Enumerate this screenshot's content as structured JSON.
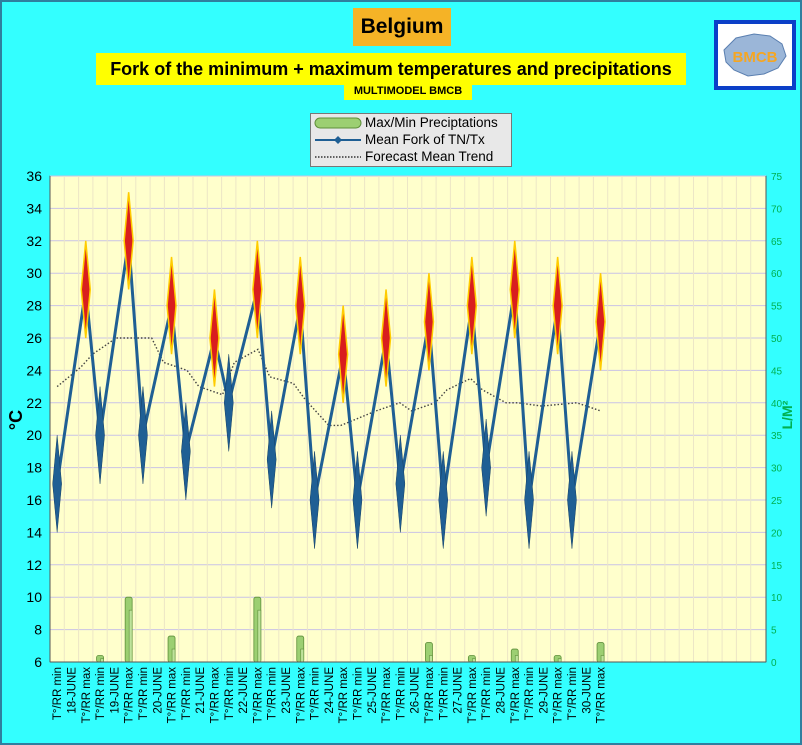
{
  "header": {
    "country": "Belgium",
    "subtitle": "Fork of the minimum + maximum temperatures and precipitations",
    "model": "MULTIMODEL BMCB",
    "logo_text": "BMCB"
  },
  "legend": {
    "items": [
      "Max/Min Preciptations",
      "Mean Fork of TN/Tx",
      "Forecast Mean Trend"
    ]
  },
  "colors": {
    "background": "#33ffff",
    "plot_bg": "#ffffcc",
    "line": "#1f5f94",
    "marker": "#1f5f94",
    "max_diamond": "#d91e1e",
    "max_diamond_edge": "#ffcc00",
    "trend": "#444444",
    "precip": "#9ccf72",
    "right_axis": "#00b050"
  },
  "chart_data": {
    "type": "line",
    "ylabel": "°C",
    "ylabel_right": "L/M²",
    "ylim": [
      6,
      36
    ],
    "yticks": [
      6,
      8,
      10,
      12,
      14,
      16,
      18,
      20,
      22,
      24,
      26,
      28,
      30,
      32,
      34,
      36
    ],
    "y2lim": [
      0,
      75
    ],
    "y2ticks": [
      0,
      5,
      10,
      15,
      20,
      25,
      30,
      35,
      40,
      45,
      50,
      55,
      60,
      65,
      70,
      75
    ],
    "categories": [
      "T°/RR min",
      "18-JUNE",
      "T°/RR max",
      "T°/RR min",
      "19-JUNE",
      "T°/RR max",
      "T°/RR min",
      "20-JUNE",
      "T°/RR max",
      "T°/RR min",
      "21-JUNE",
      "T°/RR max",
      "T°/RR min",
      "22-JUNE",
      "T°/RR max",
      "T°/RR min",
      "23-JUNE",
      "T°/RR max",
      "T°/RR min",
      "24-JUNE",
      "T°/RR max",
      "T°/RR min",
      "25-JUNE",
      "T°/RR max",
      "T°/RR min",
      "26-JUNE",
      "T°/RR max",
      "T°/RR min",
      "27-JUNE",
      "T°/RR max",
      "T°/RR min",
      "28-JUNE",
      "T°/RR max",
      "T°/RR min",
      "29-JUNE",
      "T°/RR max",
      "T°/RR min",
      "30-JUNE",
      "T°/RR max"
    ],
    "mean_fork": [
      {
        "i": 0,
        "y": 17.0,
        "lo": 14.0,
        "hi": 20.0
      },
      {
        "i": 2,
        "y": 29.0,
        "lo": 26.0,
        "hi": 32.0
      },
      {
        "i": 3,
        "y": 20.0,
        "lo": 17.0,
        "hi": 23.0
      },
      {
        "i": 5,
        "y": 32.0,
        "lo": 29.0,
        "hi": 35.0
      },
      {
        "i": 6,
        "y": 20.0,
        "lo": 17.0,
        "hi": 23.0
      },
      {
        "i": 8,
        "y": 28.0,
        "lo": 25.0,
        "hi": 31.0
      },
      {
        "i": 9,
        "y": 19.0,
        "lo": 16.0,
        "hi": 22.0
      },
      {
        "i": 11,
        "y": 26.0,
        "lo": 23.0,
        "hi": 29.0
      },
      {
        "i": 12,
        "y": 22.0,
        "lo": 19.0,
        "hi": 25.0
      },
      {
        "i": 14,
        "y": 29.0,
        "lo": 26.0,
        "hi": 32.0
      },
      {
        "i": 15,
        "y": 18.5,
        "lo": 15.5,
        "hi": 21.5
      },
      {
        "i": 17,
        "y": 28.0,
        "lo": 25.0,
        "hi": 31.0
      },
      {
        "i": 18,
        "y": 16.0,
        "lo": 13.0,
        "hi": 19.0
      },
      {
        "i": 20,
        "y": 25.0,
        "lo": 22.0,
        "hi": 28.0
      },
      {
        "i": 21,
        "y": 16.0,
        "lo": 13.0,
        "hi": 19.0
      },
      {
        "i": 23,
        "y": 26.0,
        "lo": 23.0,
        "hi": 29.0
      },
      {
        "i": 24,
        "y": 17.0,
        "lo": 14.0,
        "hi": 20.0
      },
      {
        "i": 26,
        "y": 27.0,
        "lo": 24.0,
        "hi": 30.0
      },
      {
        "i": 27,
        "y": 16.0,
        "lo": 13.0,
        "hi": 19.0
      },
      {
        "i": 29,
        "y": 28.0,
        "lo": 25.0,
        "hi": 31.0
      },
      {
        "i": 30,
        "y": 18.0,
        "lo": 15.0,
        "hi": 21.0
      },
      {
        "i": 32,
        "y": 29.0,
        "lo": 26.0,
        "hi": 32.0
      },
      {
        "i": 33,
        "y": 16.0,
        "lo": 13.0,
        "hi": 19.0
      },
      {
        "i": 35,
        "y": 28.0,
        "lo": 25.0,
        "hi": 31.0
      },
      {
        "i": 36,
        "y": 16.0,
        "lo": 13.0,
        "hi": 19.0
      },
      {
        "i": 38,
        "y": 27.0,
        "lo": 24.0,
        "hi": 30.0
      }
    ],
    "trend": [
      {
        "i": 0,
        "y": 23.0
      },
      {
        "i": 2,
        "y": 24.2
      },
      {
        "i": 3,
        "y": 25.0
      },
      {
        "i": 5,
        "y": 26.0
      },
      {
        "i": 8,
        "y": 26.0
      },
      {
        "i": 9,
        "y": 24.5
      },
      {
        "i": 11,
        "y": 24.0
      },
      {
        "i": 12,
        "y": 23.0
      },
      {
        "i": 14,
        "y": 22.5
      },
      {
        "i": 15,
        "y": 24.5
      },
      {
        "i": 17,
        "y": 25.3
      },
      {
        "i": 18,
        "y": 23.6
      },
      {
        "i": 20,
        "y": 23.2
      },
      {
        "i": 21,
        "y": 22.2
      },
      {
        "i": 23,
        "y": 20.6
      },
      {
        "i": 24,
        "y": 20.6
      },
      {
        "i": 26,
        "y": 21.2
      },
      {
        "i": 27,
        "y": 21.5
      },
      {
        "i": 29,
        "y": 22.0
      },
      {
        "i": 30,
        "y": 21.5
      },
      {
        "i": 32,
        "y": 22.0
      },
      {
        "i": 33,
        "y": 22.8
      },
      {
        "i": 35,
        "y": 23.5
      },
      {
        "i": 36,
        "y": 22.8
      },
      {
        "i": 38,
        "y": 22.0
      },
      {
        "i": 39,
        "y": 22.0
      },
      {
        "i": 41,
        "y": 21.8
      },
      {
        "i": 44,
        "y": 22.0
      },
      {
        "i": 46,
        "y": 21.5
      }
    ],
    "precip": [
      {
        "i": 3,
        "max": 1.0,
        "min": 0.5
      },
      {
        "i": 5,
        "max": 10.0,
        "min": 8.0
      },
      {
        "i": 8,
        "max": 4.0,
        "min": 2.0
      },
      {
        "i": 14,
        "max": 10.0,
        "min": 8.0
      },
      {
        "i": 17,
        "max": 4.0,
        "min": 2.0
      },
      {
        "i": 26,
        "max": 3.0,
        "min": 1.0
      },
      {
        "i": 29,
        "max": 1.0,
        "min": 0.5
      },
      {
        "i": 32,
        "max": 2.0,
        "min": 1.0
      },
      {
        "i": 35,
        "max": 1.0,
        "min": 0.5
      },
      {
        "i": 38,
        "max": 3.0,
        "min": 1.0
      }
    ]
  }
}
